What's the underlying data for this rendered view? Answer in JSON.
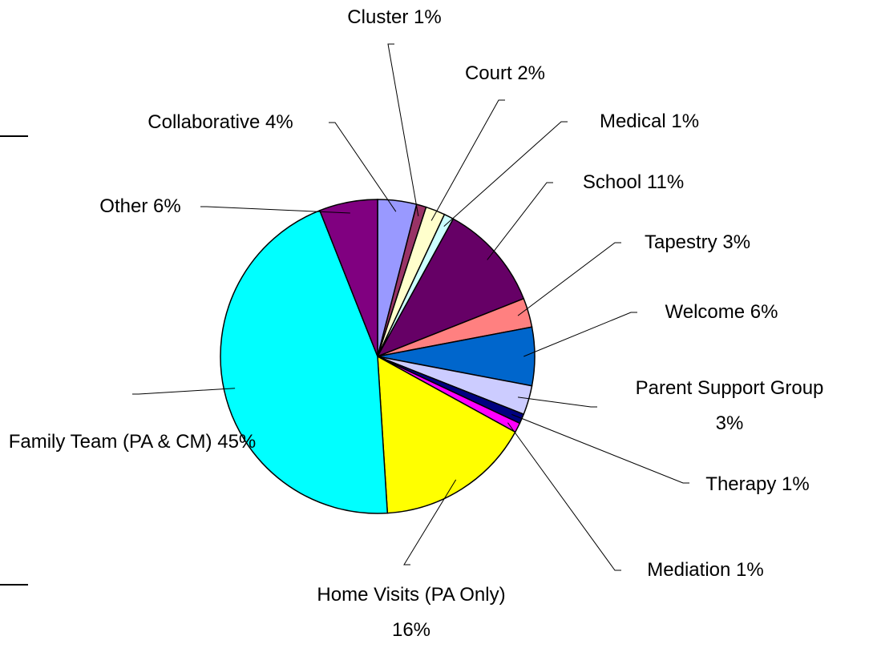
{
  "chart_data": {
    "type": "pie",
    "categories": [
      "Collaborative",
      "Cluster",
      "Court",
      "Medical",
      "School",
      "Tapestry",
      "Welcome",
      "Parent Support Group",
      "Therapy",
      "Mediation",
      "Home Visits (PA Only)",
      "Family Team (PA & CM)",
      "Other"
    ],
    "values": [
      4,
      1,
      2,
      1,
      11,
      3,
      6,
      3,
      1,
      1,
      16,
      45,
      6
    ],
    "value_labels": [
      "4%",
      "1%",
      "2%",
      "1%",
      "11%",
      "3%",
      "6%",
      "3%",
      "1%",
      "1%",
      "16%",
      "45%",
      "6%"
    ],
    "colors": [
      "#9999ff",
      "#993366",
      "#ffffcc",
      "#ccffff",
      "#660066",
      "#ff8080",
      "#0066cc",
      "#ccccff",
      "#000080",
      "#ff00ff",
      "#ffff00",
      "#00ffff",
      "#800080"
    ]
  }
}
